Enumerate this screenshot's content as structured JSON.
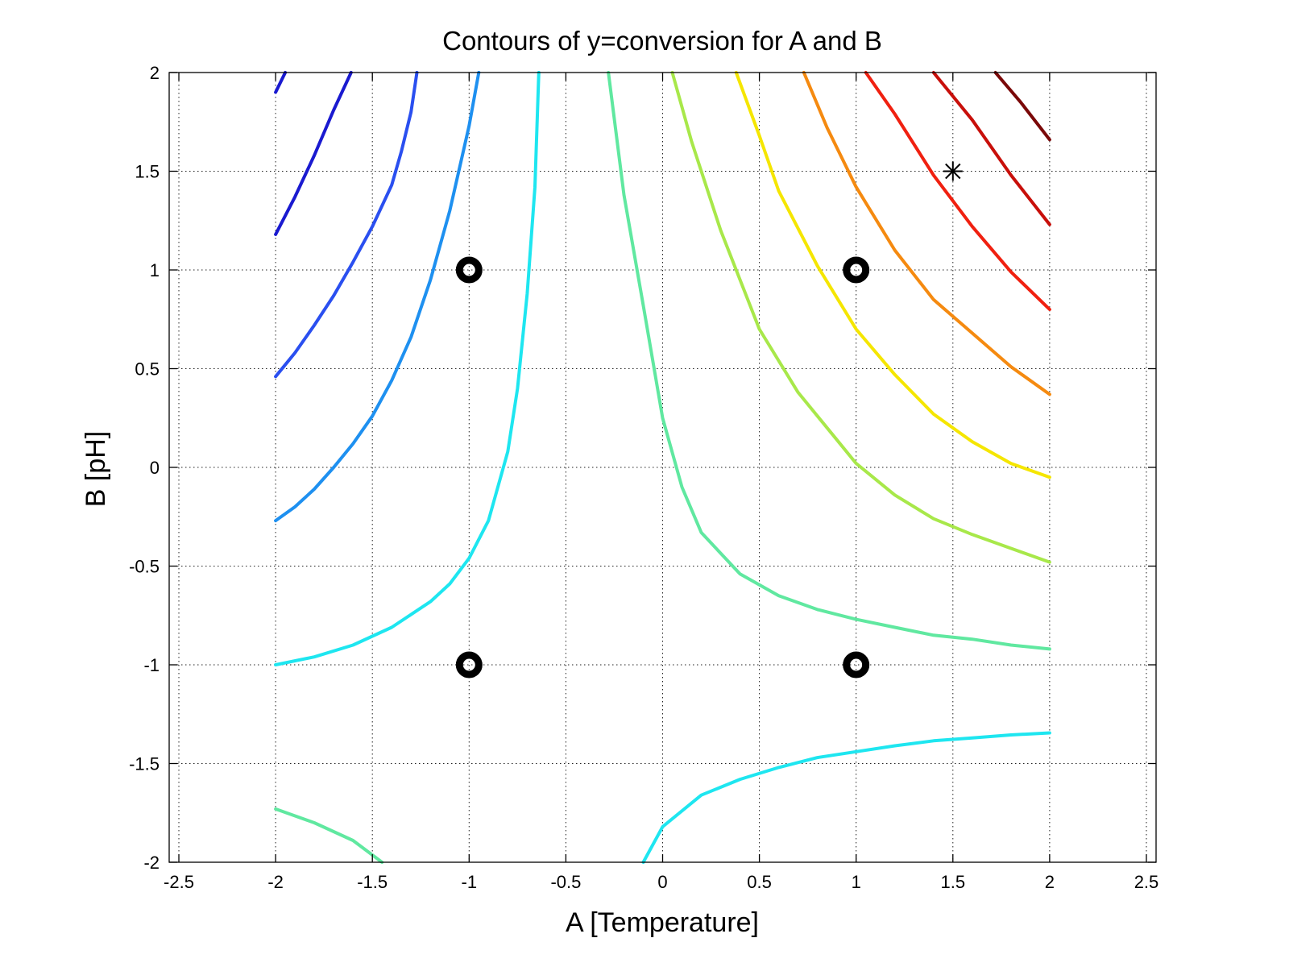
{
  "chart_data": {
    "type": "contour",
    "title": "Contours of y=conversion for A and B",
    "xlabel": "A [Temperature]",
    "ylabel": "B [pH]",
    "xlim": [
      -2.55,
      2.55
    ],
    "ylim": [
      -2,
      2
    ],
    "xticks": [
      -2.5,
      -2,
      -1.5,
      -1,
      -0.5,
      0,
      0.5,
      1,
      1.5,
      2,
      2.5
    ],
    "xtick_labels": [
      "-2.5",
      "-2",
      "-1.5",
      "-1",
      "-0.5",
      "0",
      "0.5",
      "1",
      "1.5",
      "2",
      "2.5"
    ],
    "yticks": [
      -2,
      -1.5,
      -1,
      -0.5,
      0,
      0.5,
      1,
      1.5,
      2
    ],
    "ytick_labels": [
      "-2",
      "-1.5",
      "-1",
      "-0.5",
      "0",
      "0.5",
      "1",
      "1.5",
      "2"
    ],
    "grid": true,
    "contours": [
      {
        "color": "#1a1ad0",
        "points": [
          [
            -2,
            1.9
          ],
          [
            -1.95,
            2
          ]
        ]
      },
      {
        "color": "#1a1ad0",
        "points": [
          [
            -2,
            1.18
          ],
          [
            -1.9,
            1.37
          ],
          [
            -1.8,
            1.58
          ],
          [
            -1.7,
            1.81
          ],
          [
            -1.61,
            2
          ]
        ]
      },
      {
        "color": "#2a4ff0",
        "points": [
          [
            -2,
            0.46
          ],
          [
            -1.9,
            0.58
          ],
          [
            -1.8,
            0.72
          ],
          [
            -1.7,
            0.87
          ],
          [
            -1.6,
            1.04
          ],
          [
            -1.5,
            1.22
          ],
          [
            -1.4,
            1.43
          ],
          [
            -1.35,
            1.6
          ],
          [
            -1.3,
            1.8
          ],
          [
            -1.27,
            2
          ]
        ]
      },
      {
        "color": "#1e90f0",
        "points": [
          [
            -2,
            -0.27
          ],
          [
            -1.9,
            -0.2
          ],
          [
            -1.8,
            -0.11
          ],
          [
            -1.7,
            0
          ],
          [
            -1.6,
            0.12
          ],
          [
            -1.5,
            0.26
          ],
          [
            -1.4,
            0.44
          ],
          [
            -1.3,
            0.66
          ],
          [
            -1.2,
            0.95
          ],
          [
            -1.1,
            1.3
          ],
          [
            -1.0,
            1.73
          ],
          [
            -0.95,
            2
          ]
        ]
      },
      {
        "color": "#1ee6f0",
        "points": [
          [
            -2,
            -1.0
          ],
          [
            -1.8,
            -0.96
          ],
          [
            -1.6,
            -0.9
          ],
          [
            -1.4,
            -0.81
          ],
          [
            -1.2,
            -0.68
          ],
          [
            -1.1,
            -0.59
          ],
          [
            -1.0,
            -0.46
          ],
          [
            -0.9,
            -0.27
          ],
          [
            -0.8,
            0.08
          ],
          [
            -0.75,
            0.4
          ],
          [
            -0.7,
            0.88
          ],
          [
            -0.66,
            1.42
          ],
          [
            -0.64,
            2
          ]
        ]
      },
      {
        "color": "#1ee6f0",
        "points": [
          [
            -0.1,
            -2
          ],
          [
            0,
            -1.82
          ],
          [
            0.2,
            -1.66
          ],
          [
            0.4,
            -1.58
          ],
          [
            0.6,
            -1.52
          ],
          [
            0.8,
            -1.47
          ],
          [
            1.0,
            -1.44
          ],
          [
            1.2,
            -1.41
          ],
          [
            1.4,
            -1.385
          ],
          [
            1.6,
            -1.37
          ],
          [
            1.8,
            -1.355
          ],
          [
            2,
            -1.345
          ]
        ]
      },
      {
        "color": "#60e8a0",
        "points": [
          [
            -0.28,
            2
          ],
          [
            -0.2,
            1.38
          ],
          [
            -0.1,
            0.82
          ],
          [
            0,
            0.25
          ],
          [
            0.1,
            -0.1
          ],
          [
            0.2,
            -0.33
          ],
          [
            0.4,
            -0.54
          ],
          [
            0.6,
            -0.65
          ],
          [
            0.8,
            -0.72
          ],
          [
            1.0,
            -0.77
          ],
          [
            1.2,
            -0.81
          ],
          [
            1.4,
            -0.85
          ],
          [
            1.6,
            -0.87
          ],
          [
            1.8,
            -0.9
          ],
          [
            2,
            -0.92
          ]
        ]
      },
      {
        "color": "#60e8a0",
        "points": [
          [
            -2,
            -1.73
          ],
          [
            -1.8,
            -1.8
          ],
          [
            -1.6,
            -1.89
          ],
          [
            -1.45,
            -2
          ]
        ]
      },
      {
        "color": "#a8e84a",
        "points": [
          [
            0.05,
            2
          ],
          [
            0.15,
            1.65
          ],
          [
            0.3,
            1.2
          ],
          [
            0.5,
            0.7
          ],
          [
            0.7,
            0.38
          ],
          [
            0.9,
            0.14
          ],
          [
            1.0,
            0.02
          ],
          [
            1.2,
            -0.14
          ],
          [
            1.4,
            -0.26
          ],
          [
            1.6,
            -0.34
          ],
          [
            1.8,
            -0.41
          ],
          [
            2,
            -0.48
          ]
        ]
      },
      {
        "color": "#f5e600",
        "points": [
          [
            0.38,
            2
          ],
          [
            0.5,
            1.68
          ],
          [
            0.6,
            1.4
          ],
          [
            0.8,
            1.02
          ],
          [
            1.0,
            0.7
          ],
          [
            1.2,
            0.47
          ],
          [
            1.4,
            0.27
          ],
          [
            1.6,
            0.13
          ],
          [
            1.8,
            0.02
          ],
          [
            2,
            -0.05
          ]
        ]
      },
      {
        "color": "#f58a10",
        "points": [
          [
            0.73,
            2
          ],
          [
            0.85,
            1.72
          ],
          [
            1.0,
            1.42
          ],
          [
            1.2,
            1.1
          ],
          [
            1.4,
            0.85
          ],
          [
            1.6,
            0.68
          ],
          [
            1.8,
            0.51
          ],
          [
            2,
            0.37
          ]
        ]
      },
      {
        "color": "#f02010",
        "points": [
          [
            1.05,
            2
          ],
          [
            1.2,
            1.79
          ],
          [
            1.4,
            1.48
          ],
          [
            1.6,
            1.22
          ],
          [
            1.8,
            0.99
          ],
          [
            2,
            0.8
          ]
        ]
      },
      {
        "color": "#c80f0a",
        "points": [
          [
            1.4,
            2
          ],
          [
            1.6,
            1.76
          ],
          [
            1.8,
            1.48
          ],
          [
            2,
            1.23
          ]
        ]
      },
      {
        "color": "#7a0808",
        "points": [
          [
            1.72,
            2
          ],
          [
            1.85,
            1.85
          ],
          [
            2,
            1.66
          ]
        ]
      }
    ],
    "design_points": [
      [
        -1,
        1
      ],
      [
        1,
        1
      ],
      [
        -1,
        -1
      ],
      [
        1,
        -1
      ]
    ],
    "star_point": [
      1.5,
      1.5
    ]
  }
}
